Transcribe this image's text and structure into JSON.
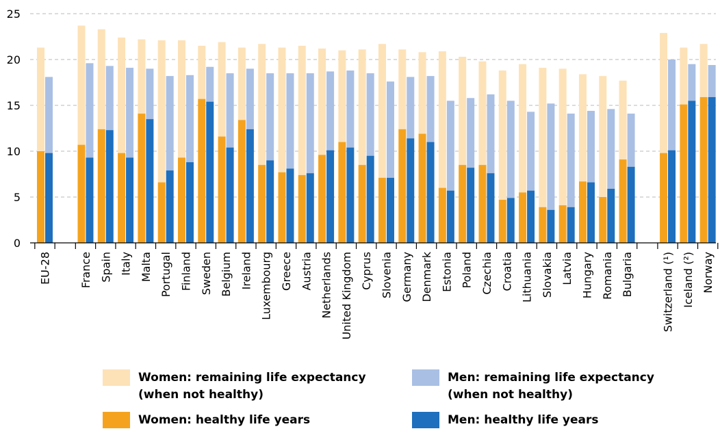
{
  "chart_data": {
    "type": "bar",
    "ylim": [
      0,
      25
    ],
    "yticks": [
      0,
      5,
      10,
      15,
      20,
      25
    ],
    "grid": true,
    "legend_position": "bottom",
    "categories": [
      "EU-28",
      "France",
      "Spain",
      "Italy",
      "Malta",
      "Portugal",
      "Finland",
      "Sweden",
      "Belgium",
      "Ireland",
      "Luxembourg",
      "Greece",
      "Austria",
      "Netherlands",
      "United Kingdom",
      "Cyprus",
      "Slovenia",
      "Germany",
      "Denmark",
      "Estonia",
      "Poland",
      "Czechia",
      "Croatia",
      "Lithuania",
      "Slovakia",
      "Latvia",
      "Hungary",
      "Romania",
      "Bulgaria",
      "Switzerland (¹)",
      "Iceland (²)",
      "Norway"
    ],
    "groups": [
      [
        0
      ],
      [
        1,
        28
      ],
      [
        29,
        31
      ]
    ],
    "series": [
      {
        "name": "Women: remaining life expectancy (when not healthy)",
        "color": "#fde2b8",
        "values": [
          11.3,
          13.0,
          10.9,
          12.6,
          8.1,
          15.5,
          12.8,
          5.8,
          10.3,
          7.9,
          13.2,
          13.6,
          14.1,
          11.6,
          10.0,
          12.6,
          14.6,
          8.7,
          8.9,
          14.9,
          11.8,
          11.3,
          14.1,
          14.0,
          15.2,
          14.9,
          11.7,
          13.2,
          8.6,
          13.1,
          6.2,
          5.8
        ]
      },
      {
        "name": "Men: remaining life expectancy (when not healthy)",
        "color": "#a9bfe4",
        "values": [
          8.3,
          10.3,
          7.0,
          9.8,
          5.5,
          10.3,
          9.5,
          3.8,
          8.1,
          6.6,
          9.5,
          10.4,
          10.9,
          8.6,
          8.4,
          9.0,
          10.5,
          6.7,
          7.2,
          9.8,
          7.6,
          8.6,
          10.6,
          8.6,
          11.6,
          10.2,
          7.8,
          8.7,
          5.8,
          9.9,
          4.0,
          3.5
        ]
      },
      {
        "name": "Women: healthy life years",
        "color": "#f5a31e",
        "values": [
          10.0,
          10.7,
          12.4,
          9.8,
          14.1,
          6.6,
          9.3,
          15.7,
          11.6,
          13.4,
          8.5,
          7.7,
          7.4,
          9.6,
          11.0,
          8.5,
          7.1,
          12.4,
          11.9,
          6.0,
          8.5,
          8.5,
          4.7,
          5.5,
          3.9,
          4.1,
          6.7,
          5.0,
          9.1,
          9.8,
          15.1,
          15.9
        ]
      },
      {
        "name": "Men: healthy life years",
        "color": "#1e6fbd",
        "values": [
          9.8,
          9.3,
          12.3,
          9.3,
          13.5,
          7.9,
          8.8,
          15.4,
          10.4,
          12.4,
          9.0,
          8.1,
          7.6,
          10.1,
          10.4,
          9.5,
          7.1,
          11.4,
          11.0,
          5.7,
          8.2,
          7.6,
          4.9,
          5.7,
          3.6,
          3.9,
          6.6,
          5.9,
          8.3,
          10.1,
          15.5,
          15.9
        ]
      }
    ]
  },
  "legend": [
    {
      "label": "Women: remaining life expectancy\n(when not healthy)",
      "color": "#fde2b8"
    },
    {
      "label": "Men: remaining life expectancy\n(when not healthy)",
      "color": "#a9bfe4"
    },
    {
      "label": "Women: healthy life years",
      "color": "#f5a31e"
    },
    {
      "label": "Men: healthy life years",
      "color": "#1e6fbd"
    }
  ]
}
